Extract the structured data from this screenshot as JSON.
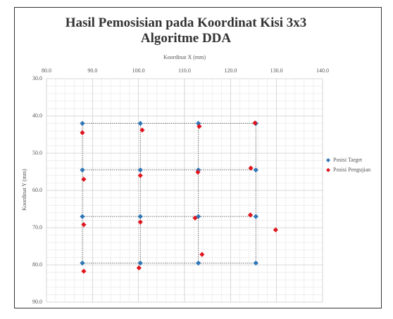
{
  "chart_data": {
    "type": "scatter",
    "title": "Hasil Pemosisian pada Koordinat Kisi 3x3 Algoritme DDA",
    "x_label": "Koordinat X (mm)",
    "y_label": "Koordinat Y (mm)",
    "xlim": [
      80,
      140
    ],
    "xticks": [
      {
        "value": 80,
        "label": "80.0"
      },
      {
        "value": 90,
        "label": "90.0"
      },
      {
        "value": 100,
        "label": "100.0"
      },
      {
        "value": 110,
        "label": "110.0"
      },
      {
        "value": 120,
        "label": "120.0"
      },
      {
        "value": 130,
        "label": "130.0"
      },
      {
        "value": 140,
        "label": "140.0"
      }
    ],
    "ylim": [
      30,
      90
    ],
    "yticks": [
      {
        "value": 30,
        "label": "30.0"
      },
      {
        "value": 40,
        "label": "40.0"
      },
      {
        "value": 50,
        "label": "50.0"
      },
      {
        "value": 60,
        "label": "60.0"
      },
      {
        "value": 70,
        "label": "70.0"
      },
      {
        "value": 80,
        "label": "80.0"
      },
      {
        "value": 90,
        "label": "90.0"
      }
    ],
    "y_inverted": true,
    "x_axis_position": "top",
    "grid": true,
    "minor_grid_step": 2,
    "legend": "right",
    "series": [
      {
        "name": "Posisi Target",
        "color": "#2e75b6",
        "connect_grid": 4,
        "x": [
          87.8,
          100.4,
          113,
          125.5,
          87.8,
          100.4,
          113,
          125.5,
          87.8,
          100.4,
          113,
          125.5,
          87.8,
          100.4,
          113,
          125.5
        ],
        "values": [
          42,
          42,
          42,
          42,
          54.5,
          54.5,
          54.5,
          54.5,
          67,
          67,
          67,
          67,
          79.5,
          79.5,
          79.5,
          79.5
        ]
      },
      {
        "name": "Posisi Pengujian",
        "color": "#e0141e",
        "x": [
          87.8,
          100.8,
          113.2,
          125.3,
          88.1,
          100.4,
          112.9,
          124.4,
          88.1,
          100.4,
          112.3,
          124.3,
          129.8,
          88.1,
          100.1,
          113.8
        ],
        "values": [
          44.5,
          43.8,
          42.8,
          41.9,
          57,
          56,
          55.1,
          54,
          69.2,
          68.5,
          67.4,
          66.6,
          70.6,
          81.7,
          80.8,
          77.2
        ]
      }
    ]
  }
}
